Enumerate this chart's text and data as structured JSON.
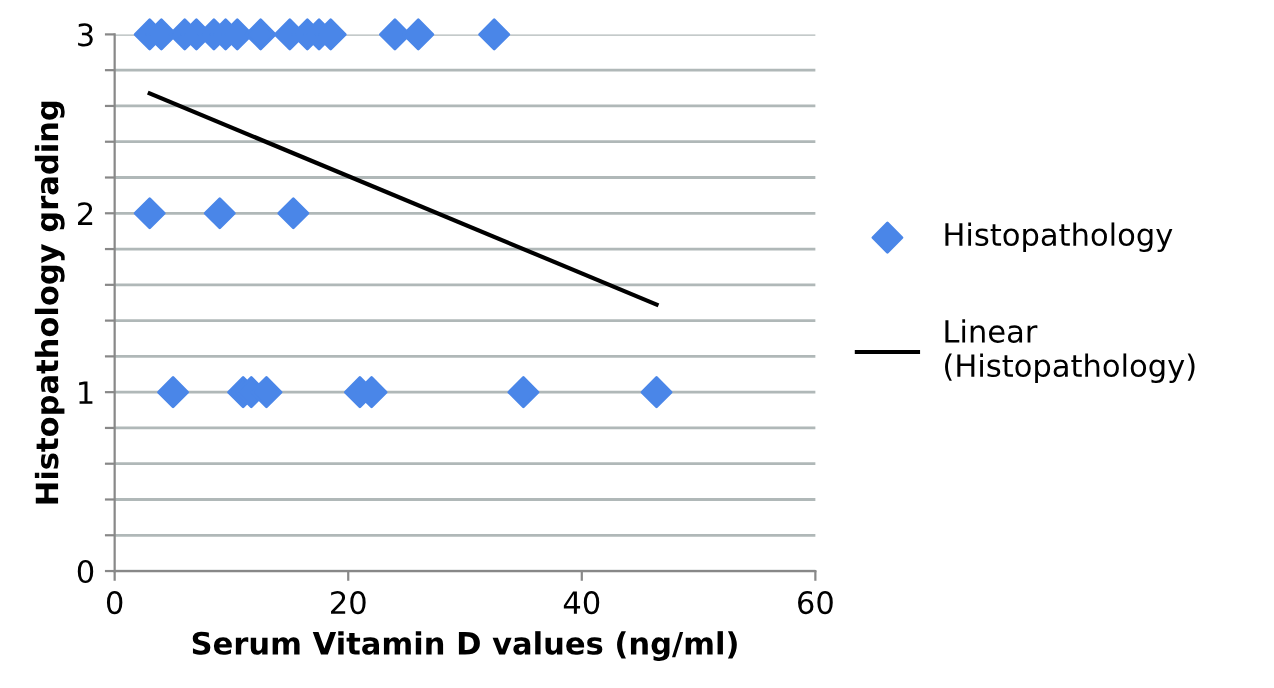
{
  "chart_data": {
    "type": "scatter",
    "xlabel": "Serum Vitamin D values (ng/ml)",
    "ylabel": "Histopathology grading",
    "xlim": [
      0,
      60
    ],
    "xticks": [
      0,
      20,
      40,
      60
    ],
    "ylim": [
      0,
      3
    ],
    "yticks": [
      0,
      {
        "value": 0.2,
        "label": null
      },
      {
        "value": 0.4,
        "label": null
      },
      {
        "value": 0.6,
        "label": null
      },
      {
        "value": 0.8,
        "label": null
      },
      1,
      {
        "value": 1.2,
        "label": null
      },
      {
        "value": 1.4,
        "label": null
      },
      {
        "value": 1.6,
        "label": null
      },
      {
        "value": 1.8,
        "label": null
      },
      2,
      {
        "value": 2.2,
        "label": null
      },
      {
        "value": 2.4,
        "label": null
      },
      {
        "value": 2.6,
        "label": null
      },
      {
        "value": 2.8,
        "label": null
      },
      3
    ],
    "grid": "y",
    "legend": "right",
    "marker": "diamond",
    "series": [
      {
        "name": "Histopathology",
        "color": "#4a86e8",
        "x": [
          3,
          4,
          6,
          7,
          8.5,
          9.5,
          10.5,
          12.5,
          15,
          16.5,
          17.5,
          18.5,
          24,
          26,
          32.5,
          3,
          9,
          15.3,
          5,
          11,
          11.7,
          13,
          21,
          22,
          35,
          46.4
        ],
        "values": [
          3,
          3,
          3,
          3,
          3,
          3,
          3,
          3,
          3,
          3,
          3,
          3,
          3,
          3,
          3,
          2,
          2,
          2,
          1,
          1,
          1,
          1,
          1,
          1,
          1,
          1
        ]
      },
      {
        "name": "Linear\n(Histopathology)",
        "type": "line",
        "color": "#000000",
        "x": [
          3,
          46.4
        ],
        "values": [
          2.67,
          1.49
        ],
        "marker": "none"
      }
    ]
  }
}
